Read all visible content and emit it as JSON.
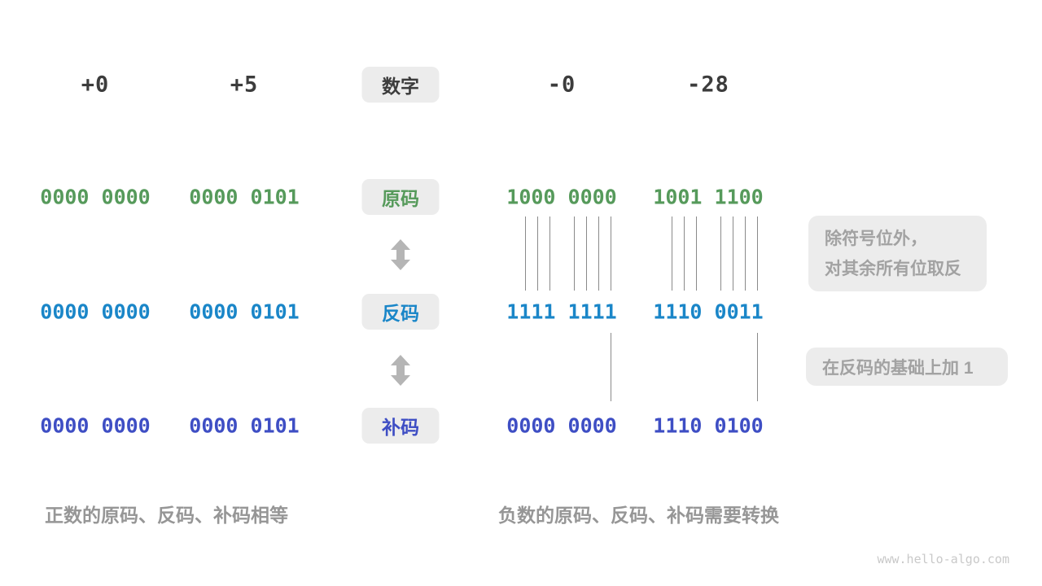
{
  "header": {
    "label": "数字",
    "values": [
      "+0",
      "+5",
      "-0",
      "-28"
    ]
  },
  "rows": [
    {
      "label": "原码",
      "color": "#569a5b",
      "values": [
        "0000 0000",
        "0000 0101",
        "1000 0000",
        "1001 1100"
      ]
    },
    {
      "label": "反码",
      "color": "#1a86c8",
      "values": [
        "0000 0000",
        "0000 0101",
        "1111 1111",
        "1110 0011"
      ]
    },
    {
      "label": "补码",
      "color": "#3e4ec4",
      "values": [
        "0000 0000",
        "0000 0101",
        "0000 0000",
        "1110 0100"
      ]
    }
  ],
  "annotations": {
    "invert_line1": "除符号位外，",
    "invert_line2": "对其余所有位取反",
    "add_one": "在反码的基础上加 1"
  },
  "notes": {
    "positive": "正数的原码、反码、补码相等",
    "negative": "负数的原码、反码、补码需要转换"
  },
  "watermark": "www.hello-algo.com",
  "colors": {
    "number_dark": "#3c3c3c",
    "sign_magnitude_green": "#569a5b",
    "ones_complement_blue": "#1a86c8",
    "twos_complement_indigo": "#3e4ec4",
    "annotation_gray": "#a2a2a2",
    "note_gray": "#969696",
    "box_background": "#ececec",
    "bit_line_gray": "#8a8a8a",
    "arrow_gray": "#b5b5b5",
    "watermark_gray": "#c9c9c9"
  }
}
